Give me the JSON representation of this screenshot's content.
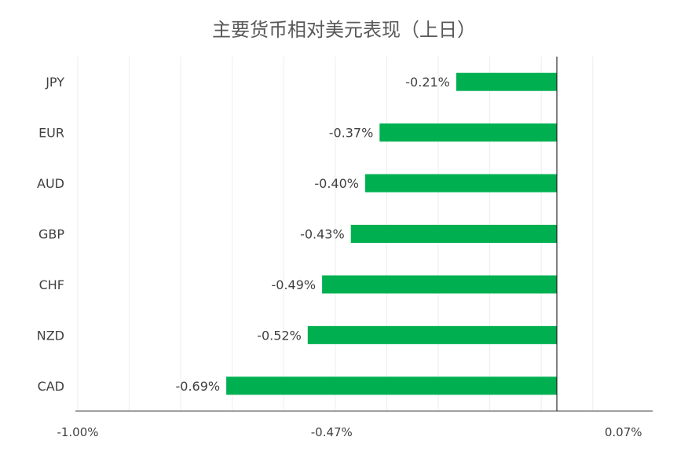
{
  "chart_data": {
    "type": "bar",
    "orientation": "horizontal",
    "title": "主要货币相对美元表现（上日）",
    "categories": [
      "JPY",
      "EUR",
      "AUD",
      "GBP",
      "CHF",
      "NZD",
      "CAD"
    ],
    "values": [
      -0.21,
      -0.37,
      -0.4,
      -0.43,
      -0.49,
      -0.52,
      -0.69
    ],
    "value_labels": [
      "-0.21%",
      "-0.37%",
      "-0.40%",
      "-0.43%",
      "-0.49%",
      "-0.52%",
      "-0.69%"
    ],
    "xlim": [
      -1.0,
      0.07
    ],
    "x_ticks": [
      -1.0,
      -0.47,
      0.07
    ],
    "x_tick_labels": [
      "-1.00%",
      "-0.47%",
      "0.07%"
    ],
    "grid": "vertical",
    "legend": "none",
    "bar_color": "#00B050"
  }
}
